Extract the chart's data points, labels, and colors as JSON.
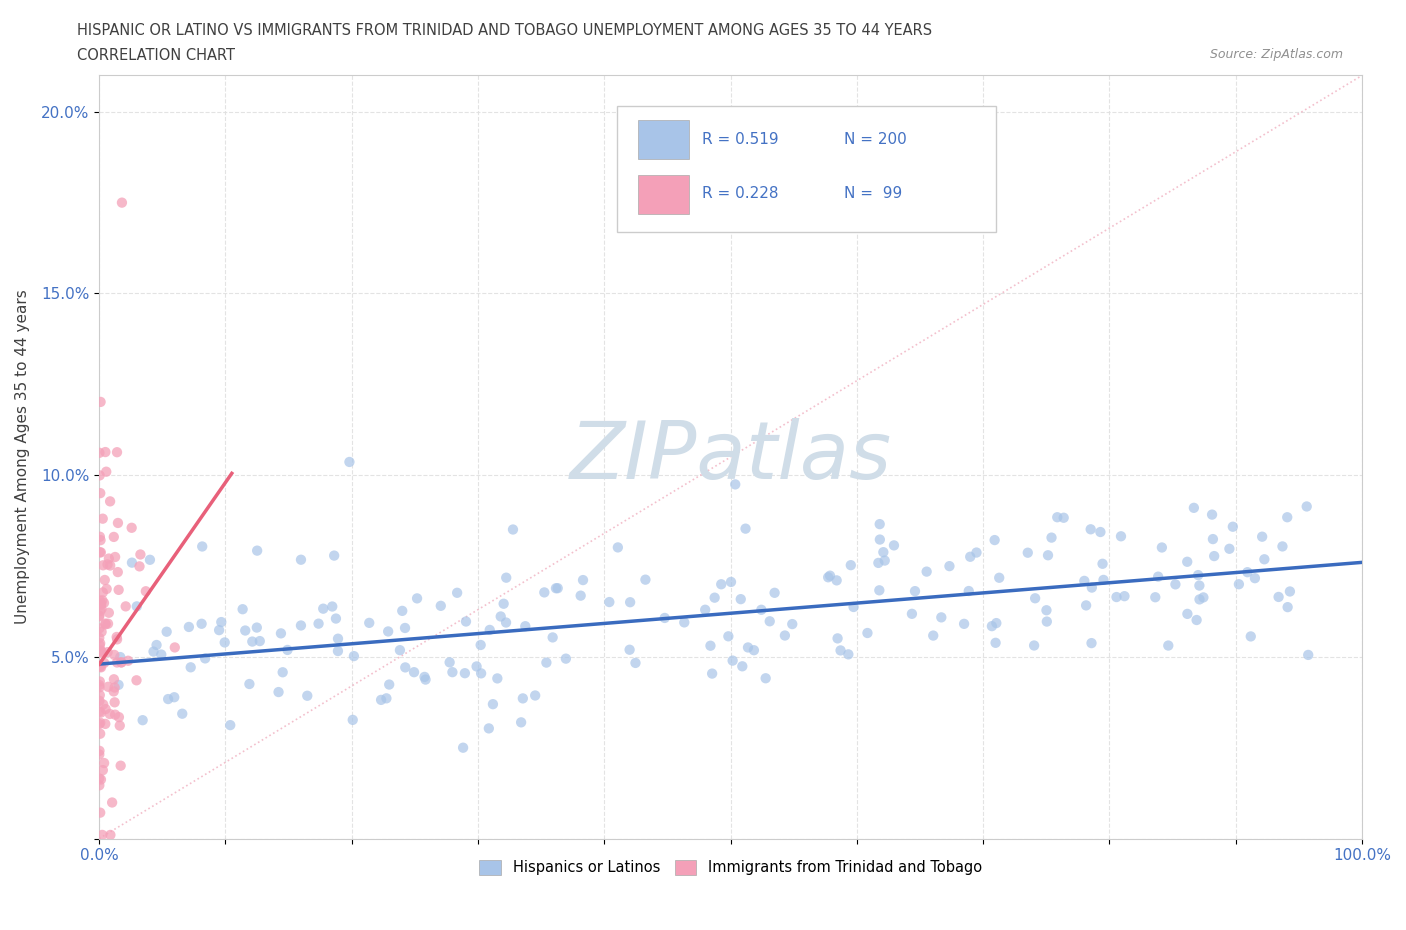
{
  "title_line1": "HISPANIC OR LATINO VS IMMIGRANTS FROM TRINIDAD AND TOBAGO UNEMPLOYMENT AMONG AGES 35 TO 44 YEARS",
  "title_line2": "CORRELATION CHART",
  "source_text": "Source: ZipAtlas.com",
  "ylabel": "Unemployment Among Ages 35 to 44 years",
  "xlim": [
    0.0,
    1.0
  ],
  "ylim": [
    0.0,
    0.21
  ],
  "x_ticks": [
    0.0,
    0.1,
    0.2,
    0.3,
    0.4,
    0.5,
    0.6,
    0.7,
    0.8,
    0.9,
    1.0
  ],
  "x_tick_labels": [
    "0.0%",
    "",
    "",
    "",
    "",
    "",
    "",
    "",
    "",
    "",
    "100.0%"
  ],
  "y_ticks": [
    0.0,
    0.05,
    0.1,
    0.15,
    0.2
  ],
  "y_tick_labels": [
    "",
    "5.0%",
    "10.0%",
    "15.0%",
    "20.0%"
  ],
  "blue_R": 0.519,
  "blue_N": 200,
  "pink_R": 0.228,
  "pink_N": 99,
  "blue_color": "#a8c4e8",
  "pink_color": "#f4a0b8",
  "blue_line_color": "#3a6bbf",
  "pink_line_color": "#e8607a",
  "diag_line_color": "#f0b0c0",
  "watermark_text": "ZIPatlas",
  "watermark_color": "#d0dde8",
  "legend_label_blue": "Hispanics or Latinos",
  "legend_label_pink": "Immigrants from Trinidad and Tobago",
  "blue_slope": 0.028,
  "blue_intercept": 0.048,
  "pink_slope": 0.5,
  "pink_intercept": 0.048,
  "background_color": "#ffffff",
  "grid_color": "#e0e0e0",
  "tick_color": "#4472c4",
  "title_color": "#404040",
  "source_color": "#909090",
  "ylabel_color": "#404040"
}
